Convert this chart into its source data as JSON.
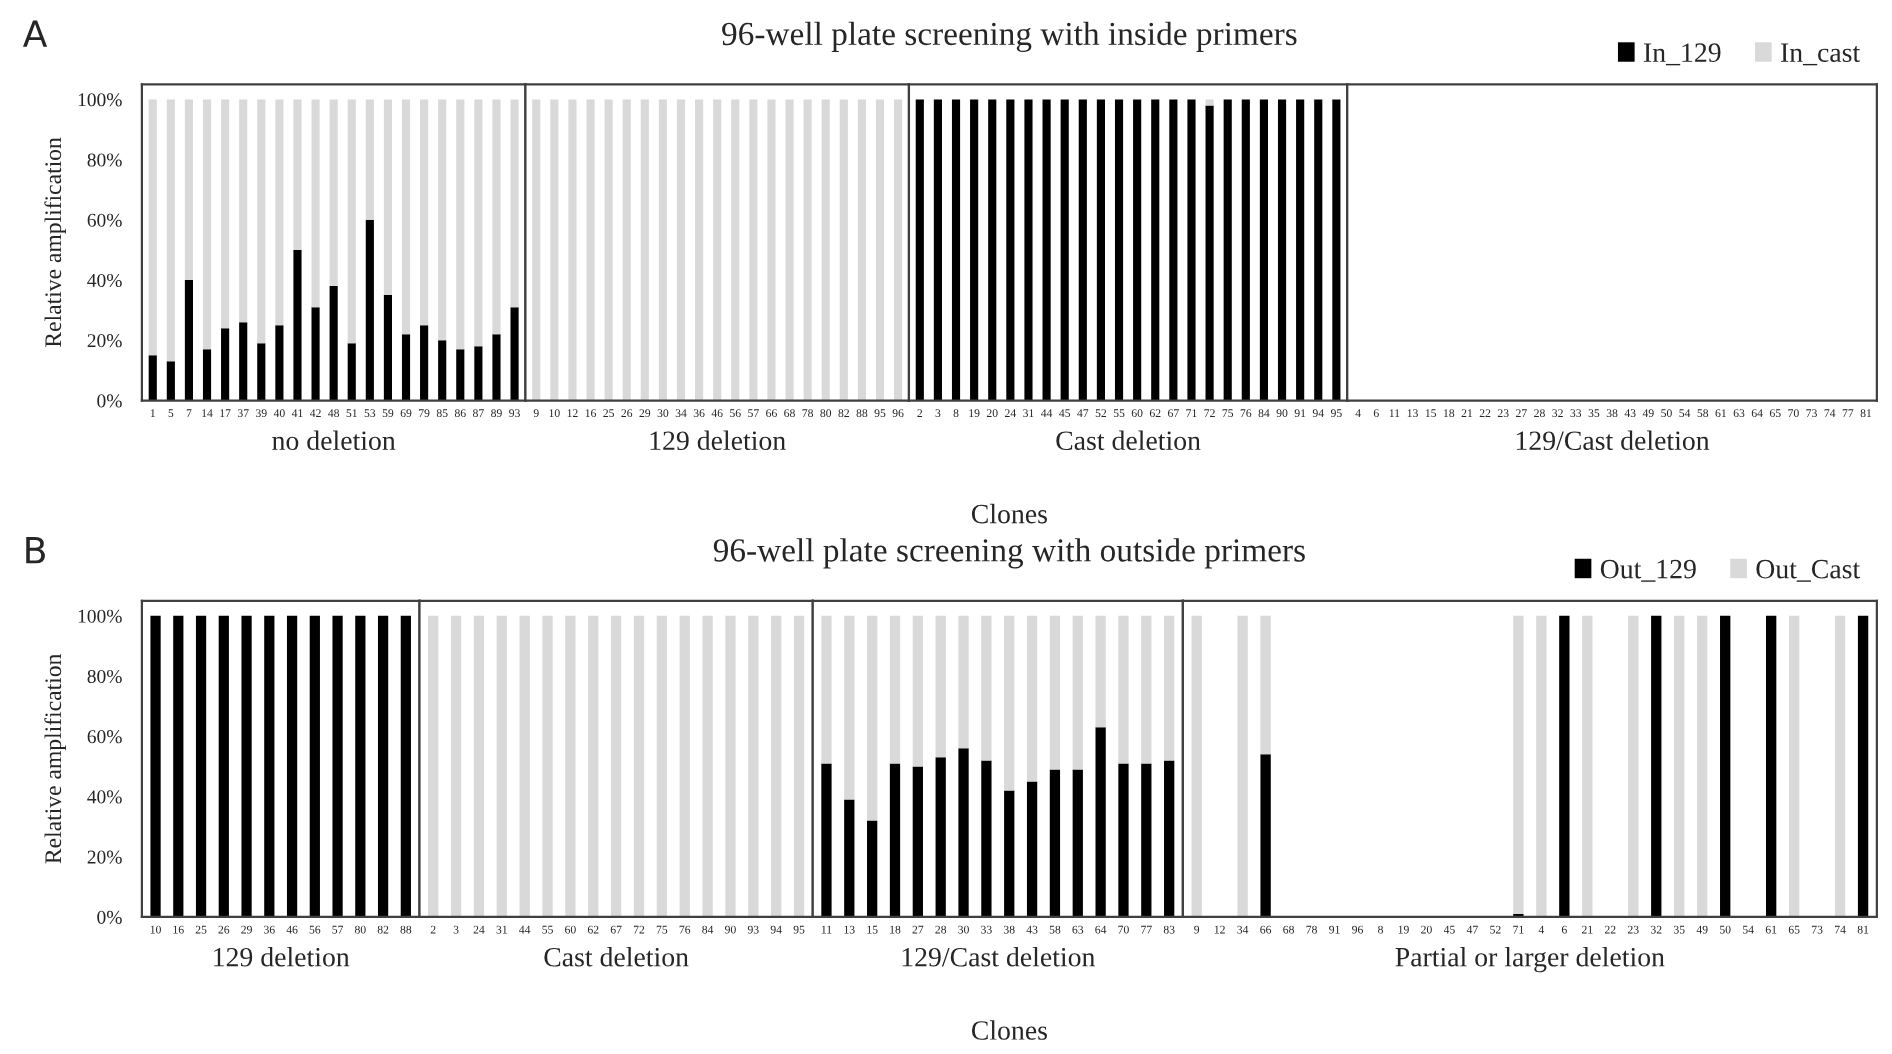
{
  "chart_data": [
    {
      "type": "bar",
      "ylabel": "Relative amplification",
      "xlabel": "no deletion",
      "annotations": [
        "A",
        "Clones"
      ],
      "stacked": true,
      "ylim": [
        0,
        105
      ],
      "yticks": [
        {
          "value": 0,
          "label": "0%"
        },
        {
          "value": 20,
          "label": "20%"
        },
        {
          "value": 40,
          "label": "40%"
        },
        {
          "value": 60,
          "label": "60%"
        },
        {
          "value": 80,
          "label": "80%"
        },
        {
          "value": 100,
          "label": "100%"
        }
      ],
      "categories": [
        "1",
        "5",
        "7",
        "14",
        "17",
        "37",
        "39",
        "40",
        "41",
        "42",
        "48",
        "51",
        "53",
        "59",
        "69",
        "79",
        "85",
        "86",
        "87",
        "89",
        "93"
      ],
      "series": [
        {
          "color": "#000000",
          "values": [
            15,
            13,
            40,
            17,
            24,
            26,
            19,
            25,
            50,
            31,
            38,
            19,
            60,
            35,
            22,
            25,
            20,
            17,
            18,
            22,
            31
          ]
        },
        {
          "color": "#d9d9d9",
          "values": [
            85,
            87,
            60,
            83,
            76,
            74,
            81,
            75,
            50,
            69,
            62,
            81,
            40,
            65,
            78,
            75,
            80,
            83,
            82,
            78,
            69
          ]
        }
      ]
    },
    {
      "type": "bar",
      "xlabel": "129 deletion",
      "stacked": true,
      "ylim": [
        0,
        105
      ],
      "tick_labels": "x",
      "categories": [
        "9",
        "10",
        "12",
        "16",
        "25",
        "26",
        "29",
        "30",
        "34",
        "36",
        "46",
        "56",
        "57",
        "66",
        "68",
        "78",
        "80",
        "82",
        "88",
        "95",
        "96"
      ],
      "series": [
        {
          "color": "#000000",
          "values": [
            0,
            0,
            0,
            0,
            0,
            0,
            0,
            0,
            0,
            0,
            0,
            0,
            0,
            0,
            0,
            0,
            0,
            0,
            0,
            0,
            0
          ]
        },
        {
          "color": "#d9d9d9",
          "values": [
            100,
            100,
            100,
            100,
            100,
            100,
            100,
            100,
            100,
            100,
            100,
            100,
            100,
            100,
            100,
            100,
            100,
            100,
            100,
            100,
            100
          ]
        }
      ]
    },
    {
      "type": "bar",
      "title": "96-well plate screening with inside primers",
      "xlabel": "Cast deletion",
      "stacked": true,
      "ylim": [
        0,
        105
      ],
      "tick_labels": "x",
      "categories": [
        "2",
        "3",
        "8",
        "19",
        "20",
        "24",
        "31",
        "44",
        "45",
        "47",
        "52",
        "55",
        "60",
        "62",
        "67",
        "71",
        "72",
        "75",
        "76",
        "84",
        "90",
        "91",
        "94",
        "95"
      ],
      "series": [
        {
          "color": "#000000",
          "values": [
            100,
            100,
            100,
            100,
            100,
            100,
            100,
            100,
            100,
            100,
            100,
            100,
            100,
            100,
            100,
            100,
            98,
            100,
            100,
            100,
            100,
            100,
            100,
            100
          ]
        },
        {
          "color": "#d9d9d9",
          "values": [
            0,
            0,
            0,
            0,
            0,
            0,
            0,
            0,
            0,
            0,
            0,
            0,
            0,
            0,
            0,
            0,
            2,
            0,
            0,
            0,
            0,
            0,
            0,
            0
          ]
        }
      ]
    },
    {
      "type": "bar",
      "xlabel": "129/Cast deletion",
      "stacked": true,
      "ylim": [
        0,
        105
      ],
      "tick_labels": "x",
      "legend": "top right",
      "categories": [
        "4",
        "6",
        "11",
        "13",
        "15",
        "18",
        "21",
        "22",
        "23",
        "27",
        "28",
        "32",
        "33",
        "35",
        "38",
        "43",
        "49",
        "50",
        "54",
        "58",
        "61",
        "63",
        "64",
        "65",
        "70",
        "73",
        "74",
        "77",
        "81"
      ],
      "series": [
        {
          "name": "In_129",
          "color": "#000000",
          "values": [
            0,
            0,
            0,
            0,
            0,
            0,
            0,
            0,
            0,
            0,
            0,
            0,
            0,
            0,
            0,
            0,
            0,
            0,
            0,
            0,
            0,
            0,
            0,
            0,
            0,
            0,
            0,
            0,
            0
          ]
        },
        {
          "name": "In_cast",
          "color": "#d9d9d9",
          "values": [
            0,
            0,
            0,
            0,
            0,
            0,
            0,
            0,
            0,
            0,
            0,
            0,
            0,
            0,
            0,
            0,
            0,
            0,
            0,
            0,
            0,
            0,
            0,
            0,
            0,
            0,
            0,
            0,
            0
          ]
        }
      ]
    },
    {
      "type": "bar",
      "ylabel": "Relative amplification",
      "xlabel": "129 deletion",
      "annotations": [
        "B",
        "Clones"
      ],
      "stacked": true,
      "ylim": [
        0,
        105
      ],
      "yticks": [
        {
          "value": 0,
          "label": "0%"
        },
        {
          "value": 20,
          "label": "20%"
        },
        {
          "value": 40,
          "label": "40%"
        },
        {
          "value": 60,
          "label": "60%"
        },
        {
          "value": 80,
          "label": "80%"
        },
        {
          "value": 100,
          "label": "100%"
        }
      ],
      "categories": [
        "10",
        "16",
        "25",
        "26",
        "29",
        "36",
        "46",
        "56",
        "57",
        "80",
        "82",
        "88"
      ],
      "series": [
        {
          "color": "#000000",
          "values": [
            100,
            100,
            100,
            100,
            100,
            100,
            100,
            100,
            100,
            100,
            100,
            100
          ]
        },
        {
          "color": "#d9d9d9",
          "values": [
            0,
            0,
            0,
            0,
            0,
            0,
            0,
            0,
            0,
            0,
            0,
            0
          ]
        }
      ]
    },
    {
      "type": "bar",
      "xlabel": "Cast deletion",
      "stacked": true,
      "ylim": [
        0,
        105
      ],
      "tick_labels": "x",
      "categories": [
        "2",
        "3",
        "24",
        "31",
        "44",
        "55",
        "60",
        "62",
        "67",
        "72",
        "75",
        "76",
        "84",
        "90",
        "93",
        "94",
        "95"
      ],
      "series": [
        {
          "color": "#000000",
          "values": [
            0,
            0,
            0,
            0,
            0,
            0,
            0,
            0,
            0,
            0,
            0,
            0,
            0,
            0,
            0,
            0,
            0
          ]
        },
        {
          "color": "#d9d9d9",
          "values": [
            100,
            100,
            100,
            100,
            100,
            100,
            100,
            100,
            100,
            100,
            100,
            100,
            100,
            100,
            100,
            100,
            100
          ]
        }
      ]
    },
    {
      "type": "bar",
      "title": "96-well plate screening with outside primers",
      "xlabel": "129/Cast deletion",
      "stacked": true,
      "ylim": [
        0,
        105
      ],
      "tick_labels": "x",
      "categories": [
        "11",
        "13",
        "15",
        "18",
        "27",
        "28",
        "30",
        "33",
        "38",
        "43",
        "58",
        "63",
        "64",
        "70",
        "77",
        "83"
      ],
      "series": [
        {
          "color": "#000000",
          "values": [
            51,
            39,
            32,
            51,
            50,
            53,
            56,
            52,
            42,
            45,
            49,
            49,
            63,
            51,
            51,
            52
          ]
        },
        {
          "color": "#d9d9d9",
          "values": [
            49,
            61,
            68,
            49,
            50,
            47,
            44,
            48,
            58,
            55,
            51,
            51,
            37,
            49,
            49,
            48
          ]
        }
      ]
    },
    {
      "type": "bar",
      "xlabel": "Partial or larger deletion",
      "stacked": true,
      "ylim": [
        0,
        105
      ],
      "tick_labels": "x",
      "legend": "top right",
      "categories": [
        "9",
        "12",
        "34",
        "66",
        "68",
        "78",
        "91",
        "96",
        "8",
        "19",
        "20",
        "45",
        "47",
        "52",
        "71",
        "4",
        "6",
        "21",
        "22",
        "23",
        "32",
        "35",
        "49",
        "50",
        "54",
        "61",
        "65",
        "73",
        "74",
        "81"
      ],
      "series": [
        {
          "name": "Out_129",
          "color": "#000000",
          "values": [
            0,
            0,
            0,
            54,
            0,
            0,
            0,
            0,
            0,
            0,
            0,
            0,
            0,
            0,
            1,
            0,
            100,
            0,
            0,
            0,
            100,
            0,
            0,
            100,
            0,
            100,
            0,
            0,
            0,
            100
          ]
        },
        {
          "name": "Out_Cast",
          "color": "#d9d9d9",
          "values": [
            100,
            0,
            100,
            46,
            0,
            0,
            0,
            0,
            0,
            0,
            0,
            0,
            0,
            0,
            99,
            100,
            0,
            100,
            0,
            100,
            0,
            100,
            100,
            0,
            0,
            0,
            100,
            0,
            100,
            0
          ]
        }
      ]
    }
  ]
}
